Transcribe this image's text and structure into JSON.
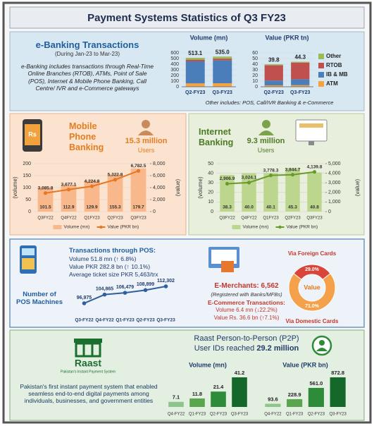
{
  "title": "Payment Systems Statistics of Q3 FY23",
  "ebanking": {
    "heading": "e-Banking Transactions",
    "period": "(During Jan-23 to Mar-23)",
    "description": "e-Banking includes transactions through Real-Time Online Branches (RTOB), ATMs, Point of Sale (POS), Internet & Mobile Phone Banking, Call Centre/ IVR and e-Commerce gateways",
    "note": "Other includes: POS, Call/IVR Banking & e-Commerce"
  },
  "mobile": {
    "heading": "Mobile Phone Banking",
    "icon_text": "Rs",
    "users": "15.3 million",
    "users_label": "Users"
  },
  "internet": {
    "heading": "Internet Banking",
    "users": "9.3 million",
    "users_label": "Users"
  },
  "pos": {
    "heading": "Transactions through POS:",
    "volume": "Volume 51.8 mn (↑ 6.8%)",
    "value": "Value PKR 282.8 bn (↑ 10.1%)",
    "ticket": "Average ticket size PKR 5,463/trx"
  },
  "ecommerce": {
    "merchants": "E-Merchants: 6,562",
    "registered": "(Registered with Banks/MFBs)",
    "heading": "E-Commerce Transactions:",
    "volume": "Volume 6.4 mn (↓22.2%)",
    "value": "Value Rs. 36.6 bn (↑7.1%)"
  },
  "raast": {
    "logo": "Raast",
    "logo_subtitle": "Pakistan's Instant Payment System",
    "heading": "Raast Person-to-Person (P2P)",
    "user_ids_text": "User IDs reached",
    "user_ids": "29.2 million",
    "description": "Pakistan's first instant payment system that enabled seamless end-to-end digital payments among individuals, businesses, and government entities"
  },
  "chart_data": [
    {
      "type": "stacked_bar",
      "title": "Volume (mn)",
      "categories": [
        "Q2-FY23",
        "Q3-FY23"
      ],
      "series": [
        {
          "name": "ATM",
          "color": "#f4a340",
          "values": [
            60,
            62
          ]
        },
        {
          "name": "IB & MB",
          "color": "#4a7ebb",
          "values": [
            390,
            405
          ]
        },
        {
          "name": "RTOB",
          "color": "#c0504d",
          "values": [
            30,
            32
          ]
        },
        {
          "name": "Other",
          "color": "#9bbb59",
          "values": [
            33.1,
            36
          ]
        }
      ],
      "totals": [
        513.1,
        535
      ],
      "total_labels": [
        "513.1",
        "535.0"
      ],
      "ylim": [
        0,
        600
      ],
      "yticks": [
        0,
        100,
        200,
        300,
        400,
        500,
        600
      ],
      "legend": "right"
    },
    {
      "type": "stacked_bar",
      "title": "Value (PKR tn)",
      "categories": [
        "Q2-FY23",
        "Q3-FY23"
      ],
      "series": [
        {
          "color": "#f4a340",
          "values": [
            2.5,
            2.8
          ]
        },
        {
          "color": "#4a7ebb",
          "values": [
            8.5,
            10.5
          ]
        },
        {
          "color": "#c0504d",
          "values": [
            27,
            29.5
          ]
        },
        {
          "color": "#9bbb59",
          "values": [
            1.8,
            1.5
          ]
        }
      ],
      "totals": [
        39.8,
        44.3
      ],
      "ylim": [
        0,
        60
      ],
      "yticks": [
        0,
        10,
        20,
        30,
        40,
        50,
        60
      ]
    },
    {
      "type": "combo",
      "categories": [
        "Q3FY22",
        "Q4FY22",
        "Q1FY23",
        "Q2FY23",
        "Q3FY23"
      ],
      "series": [
        {
          "name": "Volume (mn)",
          "kind": "bar",
          "axis": "y",
          "color": "#f8b88b",
          "values": [
            101.5,
            112.9,
            129.9,
            155.3,
            179.7
          ]
        },
        {
          "name": "Value (PKR bn)",
          "kind": "line",
          "axis": "y2",
          "color": "#e87722",
          "values": [
            3085.8,
            3677.1,
            4224.8,
            5322.8,
            6782.5
          ],
          "value_labels": [
            "3,085.8",
            "3,677.1",
            "4,224.8",
            "5,322.8",
            "6,782.5"
          ]
        }
      ],
      "ylim": [
        0,
        200
      ],
      "yticks": [
        0,
        50,
        100,
        150,
        200
      ],
      "y2lim": [
        0,
        8000
      ],
      "y2ticks": [
        0,
        {
          "value": 2000,
          "label": "2,000"
        },
        {
          "value": 4000,
          "label": "4,000"
        },
        {
          "value": 6000,
          "label": "6,000"
        },
        {
          "value": 8000,
          "label": "8,000"
        }
      ],
      "ylabel": "(volume)",
      "y2label": "(value)",
      "grid": true,
      "legend": "bottom"
    },
    {
      "type": "combo",
      "categories": [
        "Q3FY22",
        "Q4FY22",
        "Q1FY23",
        "Q2FY23",
        "Q3FY23"
      ],
      "series": [
        {
          "name": "Volume (mn)",
          "kind": "bar",
          "axis": "y",
          "color": "#bcd68e",
          "values": [
            38.3,
            40,
            40.1,
            45.3,
            40.8
          ],
          "value_labels": [
            "38.3",
            "40.0",
            "40.1",
            "45.3",
            "40.8"
          ]
        },
        {
          "name": "Value (PKR bn)",
          "kind": "line",
          "axis": "y2",
          "color": "#6a9a2c",
          "values": [
            2906.9,
            3024.1,
            3778.3,
            3844.7,
            4139.8
          ],
          "value_labels": [
            "2,906.9",
            "3,024.1",
            "3,778.3",
            "3,844.7",
            "4,139.8"
          ]
        }
      ],
      "ylim": [
        0,
        50
      ],
      "yticks": [
        0,
        10,
        20,
        30,
        40,
        50
      ],
      "y2lim": [
        0,
        5000
      ],
      "y2ticks": [
        0,
        {
          "value": 1000,
          "label": "1,000"
        },
        {
          "value": 2000,
          "label": "2,000"
        },
        {
          "value": 3000,
          "label": "3,000"
        },
        {
          "value": 4000,
          "label": "4,000"
        },
        {
          "value": 5000,
          "label": "5,000"
        }
      ],
      "ylabel": "(volume)",
      "y2label": "(value)",
      "grid": true,
      "legend": "bottom"
    },
    {
      "type": "line",
      "title": "Number of POS Machines",
      "categories": [
        "Q3-FY22",
        "Q4-FY22",
        "Q1-FY23",
        "Q2-FY23",
        "Q3-FY23"
      ],
      "values": [
        96975,
        104865,
        106479,
        108899,
        112302
      ],
      "value_labels": [
        "96,975",
        "104,865",
        "106,479",
        "108,899",
        "112,302"
      ],
      "color": "#2f5f9e"
    },
    {
      "type": "pie",
      "center_label": "Value",
      "categories": [
        "Via Foreign Cards",
        "Via Domestic Cards"
      ],
      "values": [
        29,
        71
      ],
      "value_labels": [
        "29.0%",
        "71.0%"
      ],
      "colors": [
        "#d9453a",
        "#f5a04a"
      ]
    },
    {
      "type": "bar",
      "title": "Volume (mn)",
      "categories": [
        "Q4-FY22",
        "Q1-FY23",
        "Q2-FY23",
        "Q3-FY23"
      ],
      "values": [
        7.1,
        11.8,
        21.4,
        41.2
      ],
      "colors": [
        "#8cc68a",
        "#5aa64f",
        "#2e8b3a",
        "#14692a"
      ]
    },
    {
      "type": "bar",
      "title": "Value (PKR bn)",
      "categories": [
        "Q4-FY22",
        "Q1-FY23",
        "Q2-FY23",
        "Q3-FY23"
      ],
      "values": [
        93.6,
        228.9,
        561,
        872.8
      ],
      "value_labels": [
        "93.6",
        "228.9",
        "561.0",
        "872.8"
      ],
      "colors": [
        "#8cc68a",
        "#5aa64f",
        "#2e8b3a",
        "#14692a"
      ]
    }
  ]
}
